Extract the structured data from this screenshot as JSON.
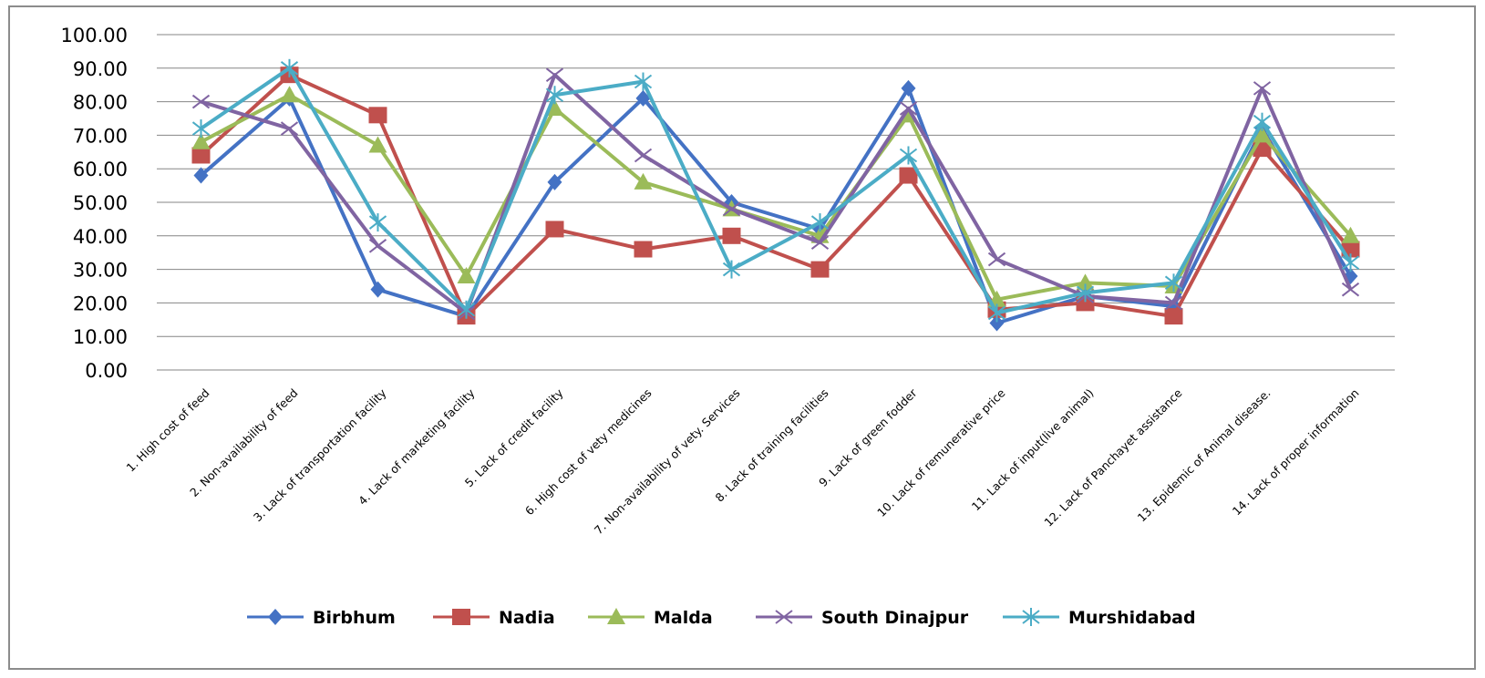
{
  "chart_data": {
    "type": "line",
    "title": "",
    "xlabel": "",
    "ylabel": "",
    "ylim": [
      0,
      100
    ],
    "ytick_step": 10,
    "ytick_labels": [
      "0.00",
      "10.00",
      "20.00",
      "30.00",
      "40.00",
      "50.00",
      "60.00",
      "70.00",
      "80.00",
      "90.00",
      "100.00"
    ],
    "grid": true,
    "legend_position": "bottom",
    "categories": [
      "1. High cost of feed",
      "2. Non-availability of feed",
      "3. Lack of transportation facility",
      "4. Lack of marketing facility",
      "5. Lack of credit facility",
      "6. High cost of vety medicines",
      "7. Non-availability of vety. Services",
      "8. Lack of training facilities",
      "9. Lack of green fodder",
      "10. Lack of remunerative price",
      "11. Lack of input(live animal)",
      "12. Lack of Panchayet assistance",
      "13. Epidemic of Animal disease.",
      "14. Lack of proper information"
    ],
    "series": [
      {
        "name": "Birbhum",
        "color": "#4472C4",
        "marker": "diamond",
        "values": [
          58,
          81,
          24,
          16,
          56,
          81,
          50,
          42,
          84,
          14,
          22,
          19,
          72,
          28
        ]
      },
      {
        "name": "Nadia",
        "color": "#C0504D",
        "marker": "square",
        "values": [
          64,
          88,
          76,
          16,
          42,
          36,
          40,
          30,
          58,
          18,
          20,
          16,
          66,
          36
        ]
      },
      {
        "name": "Malda",
        "color": "#9BBB59",
        "marker": "triangle",
        "values": [
          68,
          82,
          67,
          28,
          78,
          56,
          48,
          40,
          76,
          21,
          26,
          25,
          70,
          40
        ]
      },
      {
        "name": "South Dinajpur",
        "color": "#8064A2",
        "marker": "x",
        "values": [
          80,
          72,
          37,
          17,
          88,
          64,
          48,
          38,
          78,
          33,
          22,
          20,
          84,
          24
        ]
      },
      {
        "name": "Murshidabad",
        "color": "#4BACC6",
        "marker": "star",
        "values": [
          72,
          90,
          44,
          18,
          82,
          86,
          30,
          44,
          64,
          17,
          23,
          26,
          74,
          32
        ]
      }
    ]
  }
}
